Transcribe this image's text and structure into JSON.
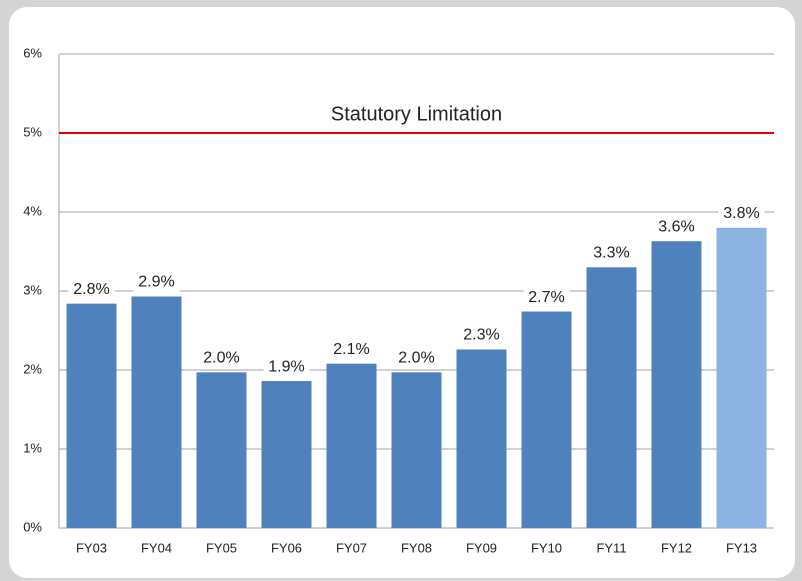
{
  "chart_data": {
    "type": "bar",
    "categories": [
      "FY03",
      "FY04",
      "FY05",
      "FY06",
      "FY07",
      "FY08",
      "FY09",
      "FY10",
      "FY11",
      "FY12",
      "FY13"
    ],
    "values": [
      2.84,
      2.93,
      1.97,
      1.86,
      2.08,
      1.97,
      2.26,
      2.74,
      3.3,
      3.63,
      3.8
    ],
    "value_labels": [
      "2.8%",
      "2.9%",
      "2.0%",
      "1.9%",
      "2.1%",
      "2.0%",
      "2.3%",
      "2.7%",
      "3.3%",
      "3.6%",
      "3.8%"
    ],
    "colors": [
      "#4f81bd",
      "#4f81bd",
      "#4f81bd",
      "#4f81bd",
      "#4f81bd",
      "#4f81bd",
      "#4f81bd",
      "#4f81bd",
      "#4f81bd",
      "#4f81bd",
      "#8db3e2"
    ],
    "ylim": [
      0,
      6
    ],
    "yticks": [
      {
        "value": 0,
        "label": "0%"
      },
      {
        "value": 1,
        "label": "1%"
      },
      {
        "value": 2,
        "label": "2%"
      },
      {
        "value": 3,
        "label": "3%"
      },
      {
        "value": 4,
        "label": "4%"
      },
      {
        "value": 5,
        "label": "5%"
      },
      {
        "value": 6,
        "label": "6%"
      }
    ],
    "grid": true,
    "reference_line": {
      "value": 5,
      "label": "Statutory Limitation",
      "color": "#e00000"
    }
  }
}
